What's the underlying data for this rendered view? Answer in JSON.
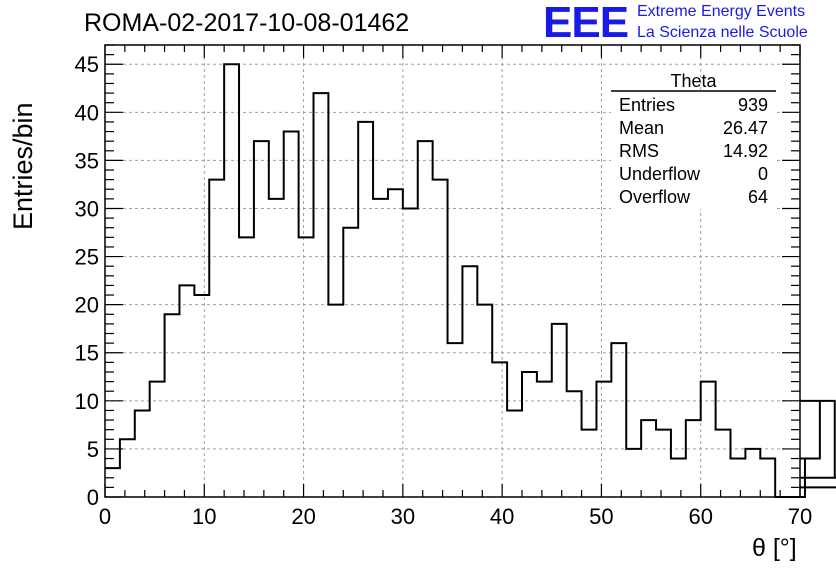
{
  "chart_data": {
    "type": "bar",
    "title": "ROMA-02-2017-10-08-01462",
    "xlabel": "θ [°]",
    "ylabel": "Entries/bin",
    "xlim": [
      0,
      70
    ],
    "ylim": [
      0,
      47
    ],
    "grid": true,
    "x_ticks": [
      "0",
      "10",
      "20",
      "30",
      "40",
      "50",
      "60",
      "70"
    ],
    "y_ticks": [
      "0",
      "5",
      "10",
      "15",
      "20",
      "25",
      "30",
      "35",
      "40",
      "45"
    ],
    "bin_width": 1.5,
    "values": [
      3,
      6,
      9,
      12,
      19,
      22,
      21,
      33,
      45,
      27,
      37,
      31,
      38,
      27,
      42,
      20,
      28,
      39,
      31,
      32,
      30,
      37,
      33,
      16,
      24,
      20,
      14,
      9,
      13,
      12,
      18,
      11,
      7,
      12,
      16,
      5,
      8,
      7,
      4,
      8,
      12,
      7,
      4,
      5,
      4,
      0,
      0,
      4,
      10,
      2,
      1
    ],
    "stats": {
      "name": "Theta",
      "rows": [
        {
          "label": "Entries",
          "value": "939"
        },
        {
          "label": "Mean",
          "value": "26.47"
        },
        {
          "label": "RMS",
          "value": "14.92"
        },
        {
          "label": "Underflow",
          "value": "0"
        },
        {
          "label": "Overflow",
          "value": "64"
        }
      ]
    }
  },
  "logo": {
    "mark": "EEE",
    "line1": "Extreme Energy Events",
    "line2": "La Scienza nelle Scuole",
    "color": "#1a1ae6"
  }
}
